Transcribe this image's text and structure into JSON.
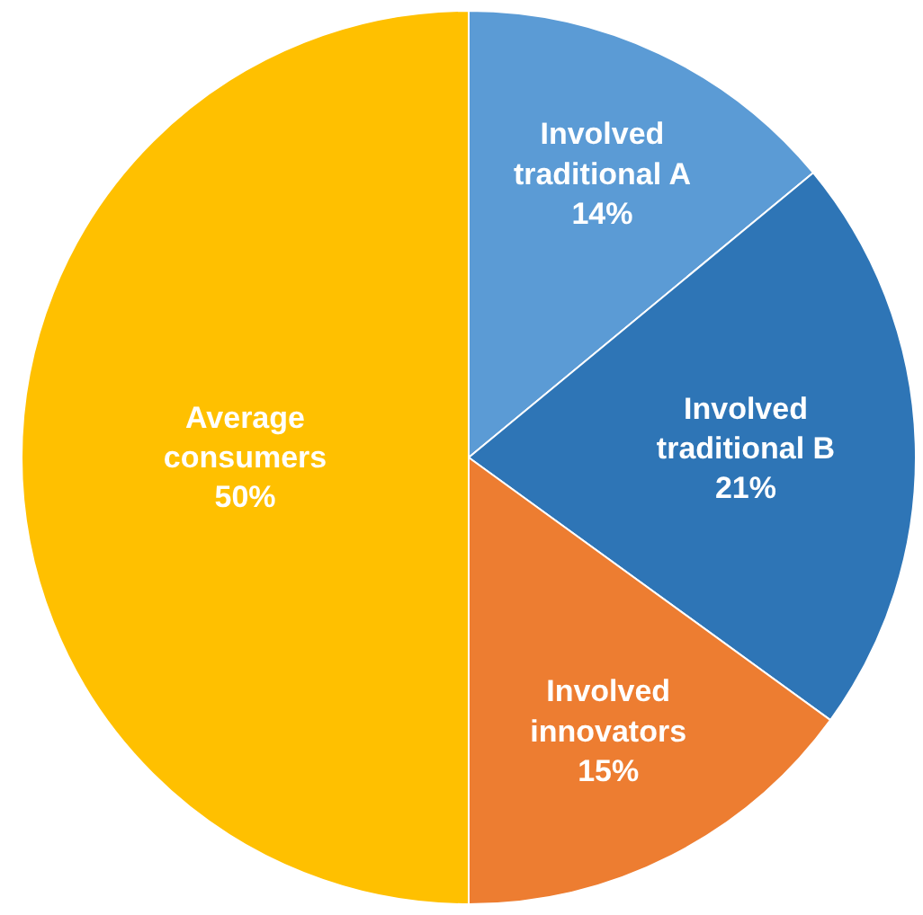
{
  "chart_data": {
    "type": "pie",
    "categories": [
      "Involved traditional A",
      "Involved traditional B",
      "Involved innovators",
      "Average consumers"
    ],
    "values": [
      14,
      21,
      15,
      50
    ],
    "value_labels": [
      "14%",
      "21%",
      "15%",
      "50%"
    ],
    "colors": [
      "#5b9bd5",
      "#2e75b6",
      "#ed7d31",
      "#ffc000"
    ],
    "legend": false
  }
}
